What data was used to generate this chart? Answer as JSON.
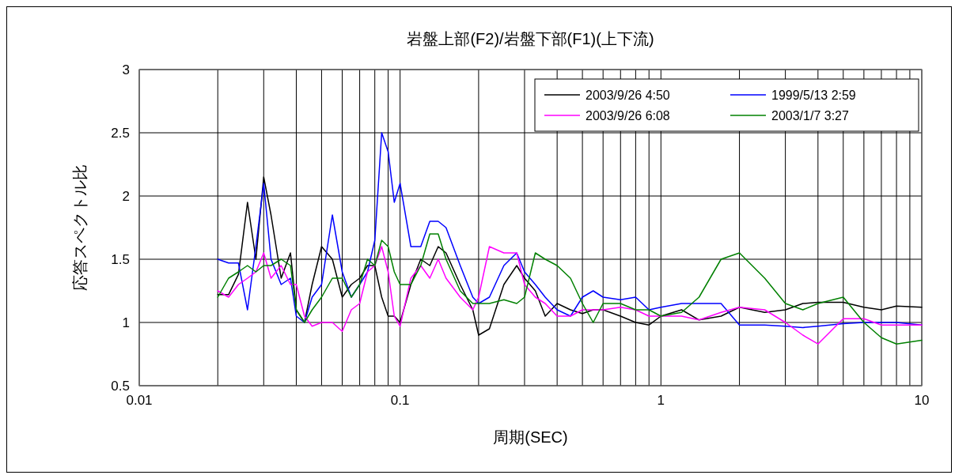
{
  "chart_data": {
    "type": "line",
    "title": "岩盤上部(F2)/岩盤下部(F1)(上下流)",
    "xlabel": "周期(SEC)",
    "ylabel": "応答スペクトル比",
    "log": "x",
    "grid": true,
    "legend": "top right",
    "marker": "none",
    "line_style": "solid",
    "xlim": [
      0.01,
      10
    ],
    "ylim": [
      0.5,
      3
    ],
    "xticks": [
      0.01,
      {
        "value": 0.02,
        "label": null
      },
      {
        "value": 0.03,
        "label": null
      },
      {
        "value": 0.04,
        "label": null
      },
      {
        "value": 0.05,
        "label": null
      },
      {
        "value": 0.06,
        "label": null
      },
      {
        "value": 0.07,
        "label": null
      },
      {
        "value": 0.08,
        "label": null
      },
      {
        "value": 0.09,
        "label": null
      },
      0.1,
      {
        "value": 0.2,
        "label": null
      },
      {
        "value": 0.3,
        "label": null
      },
      {
        "value": 0.4,
        "label": null
      },
      {
        "value": 0.5,
        "label": null
      },
      {
        "value": 0.6,
        "label": null
      },
      {
        "value": 0.7,
        "label": null
      },
      {
        "value": 0.8,
        "label": null
      },
      {
        "value": 0.9,
        "label": null
      },
      1,
      {
        "value": 2,
        "label": null
      },
      {
        "value": 3,
        "label": null
      },
      {
        "value": 4,
        "label": null
      },
      {
        "value": 5,
        "label": null
      },
      {
        "value": 6,
        "label": null
      },
      {
        "value": 7,
        "label": null
      },
      {
        "value": 8,
        "label": null
      },
      {
        "value": 9,
        "label": null
      },
      10
    ],
    "yticks": [
      0.5,
      1,
      1.5,
      2,
      2.5,
      3
    ],
    "x": [
      0.02,
      0.022,
      0.024,
      0.026,
      0.028,
      0.03,
      0.032,
      0.035,
      0.038,
      0.04,
      0.043,
      0.046,
      0.05,
      0.055,
      0.06,
      0.065,
      0.07,
      0.075,
      0.08,
      0.085,
      0.09,
      0.095,
      0.1,
      0.11,
      0.12,
      0.13,
      0.14,
      0.15,
      0.17,
      0.19,
      0.2,
      0.22,
      0.25,
      0.28,
      0.3,
      0.33,
      0.36,
      0.4,
      0.45,
      0.5,
      0.55,
      0.6,
      0.7,
      0.8,
      0.9,
      1,
      1.2,
      1.4,
      1.7,
      2,
      2.5,
      3,
      3.5,
      4,
      5,
      6,
      7,
      8,
      10
    ],
    "series": [
      {
        "name": "2003/9/26 4:50",
        "color": "#000000",
        "values": [
          1.22,
          1.22,
          1.38,
          1.95,
          1.5,
          2.15,
          1.85,
          1.35,
          1.55,
          1.1,
          1.0,
          1.3,
          1.6,
          1.5,
          1.2,
          1.3,
          1.35,
          1.45,
          1.45,
          1.2,
          1.05,
          1.05,
          1.0,
          1.3,
          1.5,
          1.45,
          1.6,
          1.55,
          1.3,
          1.1,
          0.9,
          0.95,
          1.3,
          1.45,
          1.35,
          1.25,
          1.05,
          1.15,
          1.1,
          1.07,
          1.1,
          1.1,
          1.05,
          1.0,
          0.98,
          1.05,
          1.1,
          1.02,
          1.05,
          1.12,
          1.08,
          1.1,
          1.15,
          1.16,
          1.16,
          1.12,
          1.1,
          1.13,
          1.12
        ]
      },
      {
        "name": "1999/5/13 2:59",
        "color": "#0000ff",
        "values": [
          1.5,
          1.47,
          1.47,
          1.1,
          1.6,
          2.1,
          1.5,
          1.3,
          1.35,
          1.05,
          1.0,
          1.2,
          1.3,
          1.85,
          1.4,
          1.2,
          1.3,
          1.4,
          1.65,
          2.5,
          2.35,
          1.95,
          2.1,
          1.6,
          1.6,
          1.8,
          1.8,
          1.75,
          1.45,
          1.2,
          1.15,
          1.2,
          1.45,
          1.55,
          1.4,
          1.3,
          1.2,
          1.1,
          1.05,
          1.2,
          1.25,
          1.2,
          1.18,
          1.2,
          1.1,
          1.12,
          1.15,
          1.15,
          1.15,
          0.98,
          0.98,
          0.97,
          0.96,
          0.97,
          0.99,
          1.0,
          1.0,
          1.0,
          0.98
        ]
      },
      {
        "name": "2003/9/26 6:08",
        "color": "#ff00ff",
        "values": [
          1.25,
          1.2,
          1.3,
          1.35,
          1.4,
          1.55,
          1.35,
          1.45,
          1.3,
          1.3,
          1.05,
          0.97,
          1.0,
          1.0,
          0.93,
          1.1,
          1.15,
          1.4,
          1.45,
          1.6,
          1.4,
          1.05,
          0.97,
          1.35,
          1.45,
          1.35,
          1.5,
          1.35,
          1.2,
          1.1,
          1.2,
          1.6,
          1.55,
          1.55,
          1.3,
          1.2,
          1.15,
          1.05,
          1.05,
          1.1,
          1.1,
          1.1,
          1.12,
          1.1,
          1.05,
          1.05,
          1.05,
          1.02,
          1.08,
          1.12,
          1.1,
          1.0,
          0.9,
          0.83,
          1.03,
          1.03,
          0.98,
          0.98,
          0.98
        ]
      },
      {
        "name": "2003/1/7 3:27",
        "color": "#008000",
        "values": [
          1.2,
          1.35,
          1.4,
          1.45,
          1.4,
          1.45,
          1.45,
          1.5,
          1.45,
          1.1,
          1.0,
          1.1,
          1.2,
          1.35,
          1.35,
          1.2,
          1.3,
          1.5,
          1.45,
          1.65,
          1.6,
          1.4,
          1.3,
          1.3,
          1.45,
          1.7,
          1.7,
          1.5,
          1.25,
          1.15,
          1.15,
          1.15,
          1.18,
          1.15,
          1.2,
          1.55,
          1.5,
          1.45,
          1.35,
          1.15,
          1.0,
          1.15,
          1.15,
          1.1,
          1.1,
          1.05,
          1.08,
          1.2,
          1.5,
          1.55,
          1.35,
          1.15,
          1.1,
          1.15,
          1.2,
          1.0,
          0.88,
          0.83,
          0.86
        ]
      }
    ]
  }
}
